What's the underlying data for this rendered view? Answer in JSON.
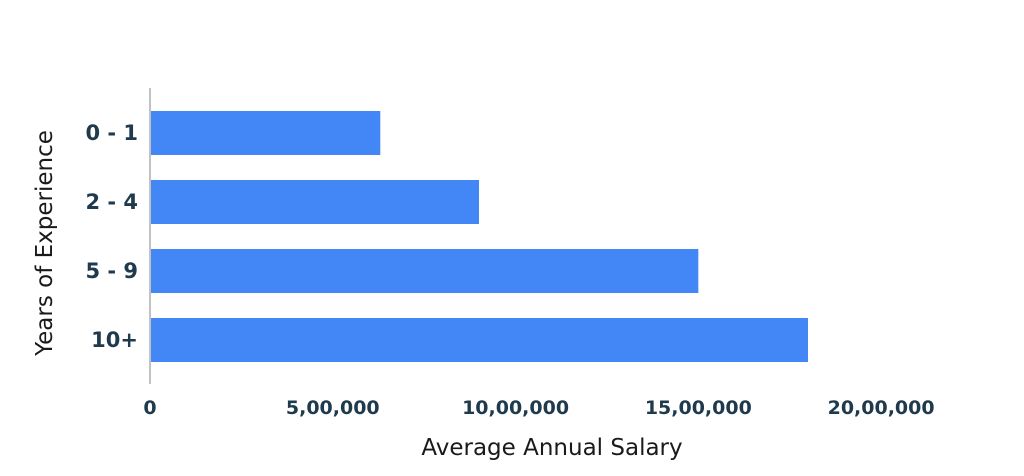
{
  "chart_data": {
    "type": "bar",
    "orientation": "horizontal",
    "categories": [
      "0 - 1",
      "2 - 4",
      "5 - 9",
      "10+"
    ],
    "values": [
      630000,
      900000,
      1500000,
      1800000
    ],
    "xlabel": "Average Annual Salary",
    "ylabel": "Years of Experience",
    "xlim": [
      0,
      2100000
    ],
    "xticks": [
      0,
      500000,
      1000000,
      1500000,
      2000000
    ],
    "xtick_labels": [
      "0",
      "5,00,000",
      "10,00,000",
      "15,00,000",
      "20,00,000"
    ],
    "grid": false,
    "bar_color": "#4287f5"
  }
}
